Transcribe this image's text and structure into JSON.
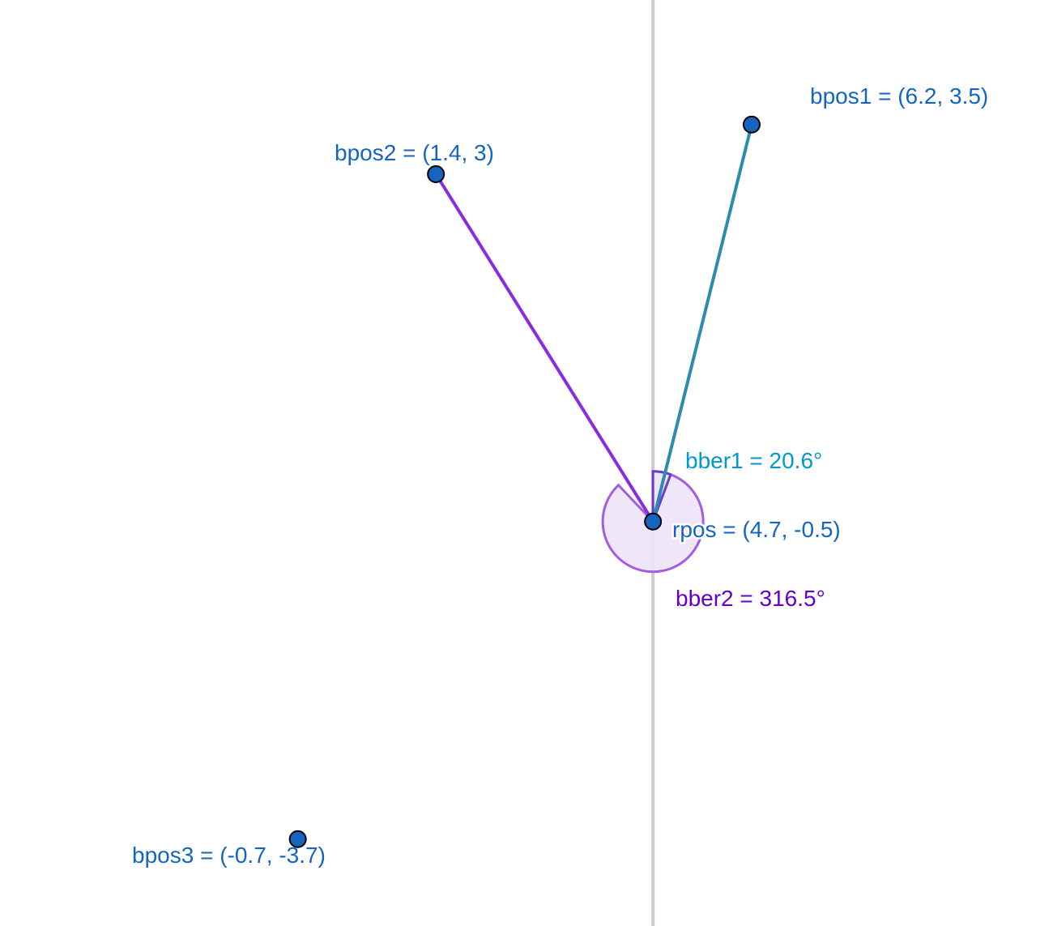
{
  "colors": {
    "point_fill": "#1565C0",
    "point_stroke": "#000000",
    "point_label": "#1565C0",
    "segment1": "#2E8BB0",
    "segment2": "#8A2BE2",
    "angle1_label": "#0099CC",
    "angle2_label": "#6600CC",
    "angle_fill": "#EEE3F8",
    "angle_stroke": "#A35CE0",
    "axis": "#CCCCCC"
  },
  "points": {
    "rpos": {
      "name": "rpos",
      "x": 4.7,
      "y": -0.5,
      "label": "rpos = (4.7, -0.5)"
    },
    "bpos1": {
      "name": "bpos1",
      "x": 6.2,
      "y": 3.5,
      "label": "bpos1 = (6.2, 3.5)"
    },
    "bpos2": {
      "name": "bpos2",
      "x": 1.4,
      "y": 3,
      "label": "bpos2 = (1.4, 3)"
    },
    "bpos3": {
      "name": "bpos3",
      "x": -0.7,
      "y": -3.7,
      "label": "bpos3 = (-0.7, -3.7)"
    }
  },
  "segments": [
    {
      "from": "rpos",
      "to": "bpos1",
      "color_key": "segment1"
    },
    {
      "from": "rpos",
      "to": "bpos2",
      "color_key": "segment2"
    }
  ],
  "angles": {
    "bber1": {
      "label": "bber1 = 20.6°",
      "degrees": 20.6
    },
    "bber2": {
      "label": "bber2 = 316.5°",
      "degrees": 316.5
    }
  }
}
